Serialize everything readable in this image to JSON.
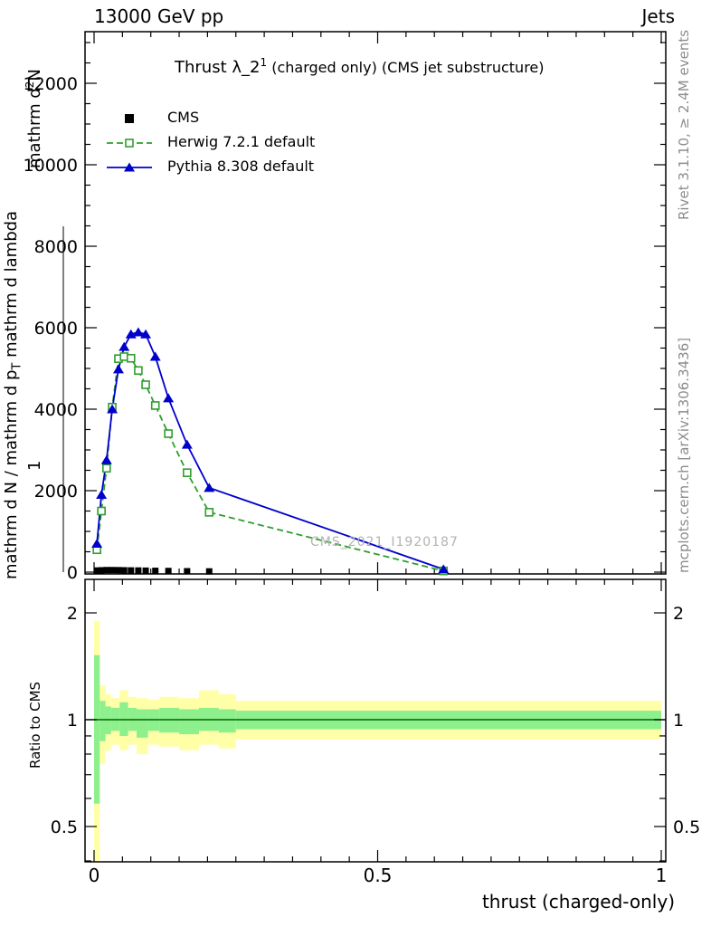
{
  "header": {
    "left": "13000 GeV pp",
    "right": "Jets"
  },
  "title": {
    "pre": "Thrust λ_2",
    "sup": "1",
    "post": " (charged only) (CMS jet substructure)"
  },
  "legend": [
    {
      "label": "CMS"
    },
    {
      "label": "Herwig 7.2.1 default"
    },
    {
      "label": "Pythia 8.308 default"
    }
  ],
  "watermark": "CMS_2021_I1920187",
  "side_notes": {
    "rivet": "Rivet 3.1.10, ≥ 2.4M events",
    "mcplots": "mcplots.cern.ch [arXiv:1306.3436]"
  },
  "axis_labels": {
    "x": "thrust (charged-only)",
    "ratio_y": "Ratio to CMS",
    "y_denominator": "mathrm d N / mathrm d p",
    "y_denominator_sub": "T",
    "y_denominator_tail": " mathrm d lambda",
    "y_numerator": "mathrm d",
    "y_numerator_sup": "2",
    "y_numerator_tail": "N",
    "y_one": "1"
  },
  "chart_data": {
    "type": "line",
    "title": "Thrust λ_2^1 (charged only) (CMS jet substructure)",
    "xlabel": "thrust (charged-only)",
    "ylabel": "1 / (mathrm d N / mathrm d p_T) mathrm d^2 N / mathrm d lambda",
    "main_panel": {
      "xlim": [
        0,
        1
      ],
      "ylim": [
        0,
        13300
      ],
      "xticks": [
        0,
        0.5,
        1
      ],
      "yticks": [
        0,
        2000,
        4000,
        6000,
        8000,
        10000,
        12000
      ],
      "legend_position": "top-left",
      "grid": false,
      "series": [
        {
          "name": "CMS",
          "type": "points",
          "marker": "square",
          "color": "#000000",
          "x": [
            0.005,
            0.013,
            0.022,
            0.032,
            0.043,
            0.053,
            0.065,
            0.078,
            0.091,
            0.108,
            0.131,
            0.164,
            0.203
          ],
          "y": [
            40,
            45,
            50,
            50,
            48,
            45,
            42,
            40,
            36,
            32,
            28,
            22,
            18
          ]
        },
        {
          "name": "Herwig 7.2.1 default",
          "type": "line",
          "style": "dashed",
          "marker": "open-square",
          "color": "#2e9e2e",
          "x": [
            0.005,
            0.013,
            0.022,
            0.032,
            0.043,
            0.053,
            0.065,
            0.078,
            0.091,
            0.108,
            0.131,
            0.164,
            0.203,
            0.616
          ],
          "y": [
            550,
            1500,
            2550,
            4050,
            5240,
            5290,
            5250,
            4950,
            4600,
            4090,
            3400,
            2440,
            1470,
            30
          ]
        },
        {
          "name": "Pythia 8.308 default",
          "type": "line",
          "style": "solid",
          "marker": "triangle",
          "color": "#0000cc",
          "x": [
            0.005,
            0.013,
            0.022,
            0.032,
            0.043,
            0.053,
            0.065,
            0.078,
            0.091,
            0.108,
            0.131,
            0.164,
            0.203,
            0.616
          ],
          "y": [
            700,
            1900,
            2750,
            4000,
            4980,
            5530,
            5840,
            5890,
            5840,
            5290,
            4270,
            3130,
            2070,
            70
          ]
        }
      ]
    },
    "ratio_panel": {
      "ylabel": "Ratio to CMS",
      "scale": "log",
      "ylim": [
        0.4,
        2.49
      ],
      "yticks": [
        0.5,
        1,
        2
      ],
      "line_at": 1.0,
      "line_color": "#006600",
      "outer_color": "#ffffa8",
      "inner_color": "#8df08d",
      "bands": [
        {
          "x0": 0.0,
          "x1": 0.01,
          "outer": [
            0.4,
            1.9
          ],
          "inner": [
            0.58,
            1.52
          ]
        },
        {
          "x0": 0.01,
          "x1": 0.02,
          "outer": [
            0.75,
            1.25
          ],
          "inner": [
            0.87,
            1.13
          ]
        },
        {
          "x0": 0.02,
          "x1": 0.03,
          "outer": [
            0.82,
            1.18
          ],
          "inner": [
            0.91,
            1.09
          ]
        },
        {
          "x0": 0.03,
          "x1": 0.045,
          "outer": [
            0.85,
            1.15
          ],
          "inner": [
            0.93,
            1.08
          ]
        },
        {
          "x0": 0.045,
          "x1": 0.06,
          "outer": [
            0.82,
            1.21
          ],
          "inner": [
            0.9,
            1.12
          ]
        },
        {
          "x0": 0.06,
          "x1": 0.075,
          "outer": [
            0.85,
            1.16
          ],
          "inner": [
            0.93,
            1.08
          ]
        },
        {
          "x0": 0.075,
          "x1": 0.095,
          "outer": [
            0.8,
            1.15
          ],
          "inner": [
            0.89,
            1.07
          ]
        },
        {
          "x0": 0.095,
          "x1": 0.115,
          "outer": [
            0.85,
            1.14
          ],
          "inner": [
            0.93,
            1.07
          ]
        },
        {
          "x0": 0.115,
          "x1": 0.15,
          "outer": [
            0.84,
            1.16
          ],
          "inner": [
            0.92,
            1.08
          ]
        },
        {
          "x0": 0.15,
          "x1": 0.185,
          "outer": [
            0.82,
            1.15
          ],
          "inner": [
            0.91,
            1.07
          ]
        },
        {
          "x0": 0.185,
          "x1": 0.22,
          "outer": [
            0.85,
            1.21
          ],
          "inner": [
            0.93,
            1.08
          ]
        },
        {
          "x0": 0.22,
          "x1": 0.25,
          "outer": [
            0.83,
            1.18
          ],
          "inner": [
            0.92,
            1.07
          ]
        },
        {
          "x0": 0.25,
          "x1": 1.0,
          "outer": [
            0.88,
            1.13
          ],
          "inner": [
            0.94,
            1.06
          ]
        }
      ]
    }
  }
}
